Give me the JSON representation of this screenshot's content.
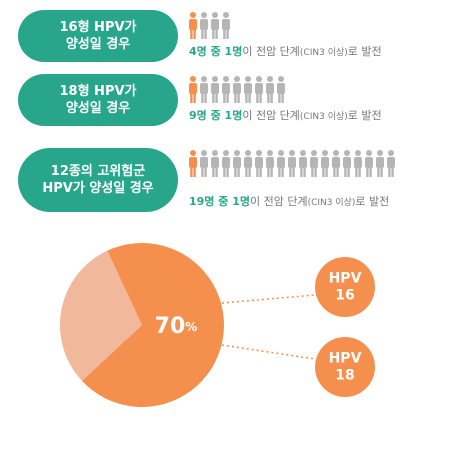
{
  "rows": [
    {
      "label": [
        "16형 HPV가",
        "양성일 경우"
      ],
      "people": 4,
      "highlighted": 1,
      "ratio": "4명 중 1명",
      "text": "이 전암 단계",
      "note": "(CIN3 이상)",
      "tail": "로 발전"
    },
    {
      "label": [
        "18형 HPV가",
        "양성일 경우"
      ],
      "people": 9,
      "highlighted": 1,
      "ratio": "9명 중 1명",
      "text": "이 전암 단계",
      "note": "(CIN3 이상)",
      "tail": "로 발전"
    },
    {
      "label": [
        "12종의 고위험군",
        "HPV가 양성일 경우"
      ],
      "people": 19,
      "highlighted": 1,
      "ratio": "19명 중 1명",
      "text": "이 전암 단계",
      "note": "(CIN3 이상)",
      "tail": "로 발전"
    }
  ],
  "pie": {
    "value": 70,
    "value_label": "70",
    "unit": "%",
    "types": [
      [
        "HPV",
        "16"
      ],
      [
        "HPV",
        "18"
      ]
    ]
  }
}
